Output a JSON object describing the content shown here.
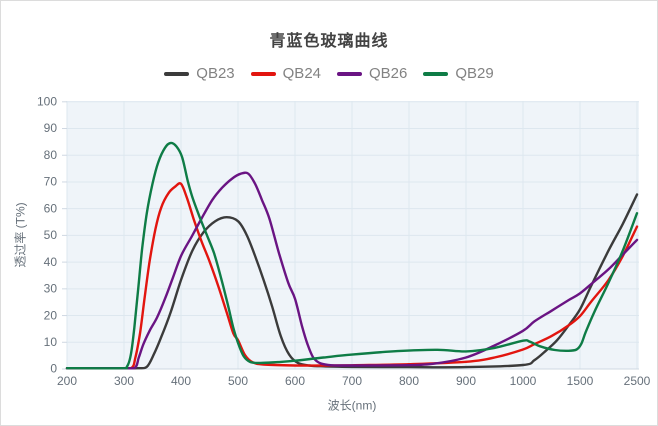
{
  "chart_data": {
    "type": "line",
    "title": "青蓝色玻璃曲线",
    "xlabel": "波长(nm)",
    "ylabel": "透过率 (T%)",
    "x_ticks": [
      "200",
      "300",
      "400",
      "500",
      "600",
      "700",
      "800",
      "900",
      "1000",
      "1500",
      "2500"
    ],
    "x_tick_values": [
      200,
      300,
      400,
      500,
      600,
      700,
      800,
      900,
      1000,
      1500,
      2500
    ],
    "y_ticks": [
      "0",
      "10",
      "20",
      "30",
      "40",
      "50",
      "60",
      "70",
      "80",
      "90",
      "100"
    ],
    "y_tick_values": [
      0,
      10,
      20,
      30,
      40,
      50,
      60,
      70,
      80,
      90,
      100
    ],
    "ylim": [
      0,
      100
    ],
    "x_axis_note": "category axis: equal spacing 200-1000 step 100, then 1500, then 2500",
    "grid": true,
    "legend_position": "top",
    "plot_bg_color": "#eff4f9",
    "grid_color": "#dde7ef",
    "axis_line_color": "#cfd8e2",
    "tick_label_color": "#66707a",
    "series": [
      {
        "name": "QB23",
        "color": "#3b3b3b",
        "points": [
          [
            200,
            0
          ],
          [
            280,
            0
          ],
          [
            325,
            0
          ],
          [
            340,
            0.5
          ],
          [
            352,
            5
          ],
          [
            366,
            12
          ],
          [
            382,
            21
          ],
          [
            400,
            33
          ],
          [
            420,
            44
          ],
          [
            440,
            51
          ],
          [
            460,
            55
          ],
          [
            480,
            56.5
          ],
          [
            500,
            55
          ],
          [
            515,
            50
          ],
          [
            530,
            42
          ],
          [
            545,
            33
          ],
          [
            560,
            23
          ],
          [
            575,
            12
          ],
          [
            590,
            5
          ],
          [
            605,
            2
          ],
          [
            625,
            1
          ],
          [
            650,
            0.7
          ],
          [
            700,
            0.5
          ],
          [
            800,
            0.4
          ],
          [
            900,
            0.4
          ],
          [
            1000,
            1.2
          ],
          [
            1100,
            3
          ],
          [
            1200,
            6.5
          ],
          [
            1300,
            10.5
          ],
          [
            1400,
            16
          ],
          [
            1500,
            22
          ],
          [
            1700,
            31
          ],
          [
            2000,
            44
          ],
          [
            2250,
            54
          ],
          [
            2500,
            65
          ]
        ]
      },
      {
        "name": "QB24",
        "color": "#e2150f",
        "points": [
          [
            200,
            0
          ],
          [
            280,
            0
          ],
          [
            312,
            0
          ],
          [
            320,
            4
          ],
          [
            328,
            13
          ],
          [
            336,
            26
          ],
          [
            345,
            40
          ],
          [
            355,
            52
          ],
          [
            365,
            60
          ],
          [
            378,
            65.5
          ],
          [
            390,
            68
          ],
          [
            400,
            69
          ],
          [
            410,
            64
          ],
          [
            422,
            56
          ],
          [
            435,
            48
          ],
          [
            450,
            40
          ],
          [
            465,
            31
          ],
          [
            480,
            21
          ],
          [
            492,
            13
          ],
          [
            500,
            10.5
          ],
          [
            512,
            5
          ],
          [
            525,
            2.3
          ],
          [
            545,
            1.4
          ],
          [
            600,
            1
          ],
          [
            650,
            1
          ],
          [
            700,
            1.1
          ],
          [
            800,
            1.5
          ],
          [
            900,
            2.4
          ],
          [
            950,
            4
          ],
          [
            1000,
            7
          ],
          [
            1100,
            9
          ],
          [
            1250,
            12
          ],
          [
            1400,
            16
          ],
          [
            1500,
            19.5
          ],
          [
            1700,
            25
          ],
          [
            2000,
            33
          ],
          [
            2250,
            42
          ],
          [
            2500,
            53
          ]
        ]
      },
      {
        "name": "QB26",
        "color": "#6a1483",
        "points": [
          [
            200,
            0
          ],
          [
            290,
            0
          ],
          [
            318,
            0
          ],
          [
            326,
            4
          ],
          [
            334,
            9
          ],
          [
            345,
            14
          ],
          [
            358,
            19
          ],
          [
            372,
            26
          ],
          [
            386,
            34
          ],
          [
            400,
            42
          ],
          [
            418,
            49
          ],
          [
            436,
            56
          ],
          [
            455,
            63
          ],
          [
            472,
            67.5
          ],
          [
            490,
            71
          ],
          [
            505,
            72.8
          ],
          [
            518,
            72.8
          ],
          [
            530,
            69
          ],
          [
            542,
            63
          ],
          [
            555,
            56
          ],
          [
            572,
            43
          ],
          [
            588,
            32
          ],
          [
            600,
            26
          ],
          [
            612,
            16
          ],
          [
            622,
            9
          ],
          [
            632,
            4
          ],
          [
            645,
            1.8
          ],
          [
            665,
            1.1
          ],
          [
            700,
            1
          ],
          [
            780,
            1.1
          ],
          [
            840,
            1.6
          ],
          [
            900,
            4
          ],
          [
            950,
            8.5
          ],
          [
            1000,
            14
          ],
          [
            1100,
            17.5
          ],
          [
            1250,
            21.5
          ],
          [
            1400,
            25.5
          ],
          [
            1500,
            28
          ],
          [
            1750,
            32.5
          ],
          [
            2000,
            37
          ],
          [
            2250,
            42.5
          ],
          [
            2500,
            48
          ]
        ]
      },
      {
        "name": "QB29",
        "color": "#0e7c46",
        "points": [
          [
            200,
            0
          ],
          [
            295,
            0
          ],
          [
            305,
            0.5
          ],
          [
            312,
            5
          ],
          [
            318,
            15
          ],
          [
            325,
            30
          ],
          [
            332,
            45
          ],
          [
            340,
            58
          ],
          [
            350,
            69
          ],
          [
            360,
            77
          ],
          [
            372,
            82.5
          ],
          [
            382,
            84.3
          ],
          [
            392,
            83
          ],
          [
            402,
            79
          ],
          [
            412,
            70
          ],
          [
            420,
            64
          ],
          [
            432,
            57
          ],
          [
            445,
            50
          ],
          [
            458,
            43
          ],
          [
            470,
            34
          ],
          [
            482,
            24
          ],
          [
            492,
            15
          ],
          [
            500,
            9.5
          ],
          [
            510,
            4.5
          ],
          [
            522,
            2.3
          ],
          [
            540,
            2
          ],
          [
            570,
            2.3
          ],
          [
            600,
            2.8
          ],
          [
            650,
            4
          ],
          [
            700,
            5.1
          ],
          [
            780,
            6.4
          ],
          [
            850,
            6.9
          ],
          [
            900,
            6.3
          ],
          [
            950,
            7.6
          ],
          [
            1000,
            10.3
          ],
          [
            1060,
            9.9
          ],
          [
            1150,
            8.2
          ],
          [
            1280,
            6.8
          ],
          [
            1400,
            6.5
          ],
          [
            1470,
            7
          ],
          [
            1520,
            9
          ],
          [
            1600,
            13.5
          ],
          [
            1750,
            21
          ],
          [
            2000,
            32
          ],
          [
            2250,
            44
          ],
          [
            2500,
            58
          ]
        ]
      }
    ]
  }
}
